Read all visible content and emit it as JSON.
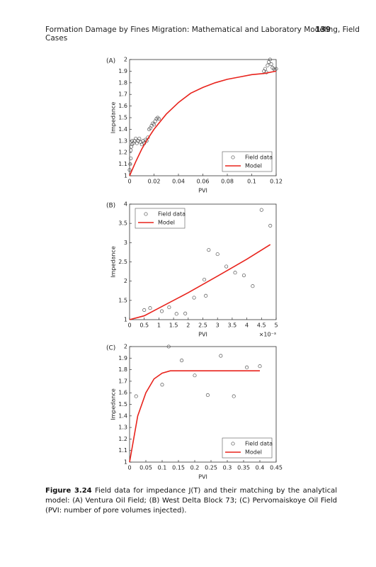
{
  "header": {
    "title": "Formation Damage by Fines Migration: Mathematical and Laboratory Modeling, Field Cases",
    "page": "139"
  },
  "caption": {
    "label": "Figure 3.24",
    "text": "Field data for impedance J(T) and their matching by the analytical model: (A) Ventura Oil Field; (B) West Delta Block 73; (C) Pervomaiskoye Oil Field (PVI: number of pore volumes injected)."
  },
  "chart_data": [
    {
      "type": "scatter",
      "panel": "(A)",
      "xlabel": "PVI",
      "ylabel": "Impedance",
      "xlim": [
        0,
        0.12
      ],
      "ylim": [
        1,
        2
      ],
      "xticks": [
        0,
        0.02,
        0.04,
        0.06,
        0.08,
        0.1,
        0.12
      ],
      "yticks": [
        1,
        1.1,
        1.2,
        1.3,
        1.4,
        1.5,
        1.6,
        1.7,
        1.8,
        1.9,
        2
      ],
      "legend": "lower right",
      "series": [
        {
          "name": "Field data",
          "color": "#555555",
          "mark": "circle",
          "x": [
            0,
            0.0005,
            0.001,
            0.001,
            0.0015,
            0.002,
            0.002,
            0.003,
            0.004,
            0.005,
            0.006,
            0.007,
            0.008,
            0.009,
            0.01,
            0.011,
            0.012,
            0.013,
            0.014,
            0.015,
            0.016,
            0.017,
            0.018,
            0.019,
            0.02,
            0.021,
            0.022,
            0.023,
            0.024,
            0.11,
            0.111,
            0.112,
            0.113,
            0.114,
            0.115,
            0.116,
            0.117,
            0.118,
            0.119,
            0.12
          ],
          "values": [
            1.05,
            1.1,
            1.15,
            1.22,
            1.25,
            1.27,
            1.3,
            1.28,
            1.3,
            1.32,
            1.28,
            1.3,
            1.32,
            1.29,
            1.27,
            1.3,
            1.28,
            1.31,
            1.3,
            1.33,
            1.4,
            1.41,
            1.43,
            1.45,
            1.44,
            1.47,
            1.49,
            1.5,
            1.49,
            1.9,
            1.92,
            1.89,
            1.95,
            1.98,
            2,
            1.96,
            1.93,
            1.92,
            1.91,
            1.92
          ]
        },
        {
          "name": "Model",
          "color": "#e8231c",
          "mark": "line",
          "x": [
            0,
            0.005,
            0.01,
            0.015,
            0.02,
            0.03,
            0.04,
            0.05,
            0.06,
            0.07,
            0.08,
            0.09,
            0.1,
            0.11,
            0.12
          ],
          "values": [
            1,
            1.12,
            1.23,
            1.32,
            1.4,
            1.53,
            1.63,
            1.71,
            1.76,
            1.8,
            1.83,
            1.85,
            1.87,
            1.88,
            1.9
          ]
        }
      ]
    },
    {
      "type": "scatter",
      "panel": "(B)",
      "xlabel": "PVI",
      "ylabel": "Impedance",
      "x_multiplier": "×10⁻³",
      "xlim": [
        0,
        5
      ],
      "ylim": [
        1,
        4
      ],
      "xticks": [
        0,
        0.5,
        1,
        1.5,
        2,
        2.5,
        3,
        3.5,
        4,
        4.5,
        5
      ],
      "yticks": [
        1,
        1.5,
        2,
        2.5,
        3,
        3.5,
        4
      ],
      "legend": "upper left",
      "series": [
        {
          "name": "Field data",
          "color": "#555555",
          "mark": "circle",
          "x": [
            0.5,
            0.7,
            1.1,
            1.35,
            1.6,
            1.9,
            2.2,
            2.55,
            2.6,
            2.7,
            3,
            3.3,
            3.6,
            3.9,
            4.2,
            4.5,
            4.8
          ],
          "values": [
            1.25,
            1.3,
            1.22,
            1.32,
            1.15,
            1.16,
            1.57,
            2.04,
            1.62,
            2.81,
            2.7,
            2.38,
            2.22,
            2.15,
            1.87,
            3.85,
            3.44
          ]
        },
        {
          "name": "Model",
          "color": "#e8231c",
          "mark": "line",
          "x": [
            0,
            0.5,
            1,
            2,
            3,
            4,
            4.8
          ],
          "values": [
            1,
            1.1,
            1.3,
            1.7,
            2.13,
            2.57,
            2.95
          ]
        }
      ]
    },
    {
      "type": "scatter",
      "panel": "(C)",
      "xlabel": "PVI",
      "ylabel": "Impedance",
      "xlim": [
        0,
        0.45
      ],
      "ylim": [
        1,
        2
      ],
      "xticks": [
        0,
        0.05,
        0.1,
        0.15,
        0.2,
        0.25,
        0.3,
        0.35,
        0.4,
        0.45
      ],
      "yticks": [
        1,
        1.1,
        1.2,
        1.3,
        1.4,
        1.5,
        1.6,
        1.7,
        1.8,
        1.9,
        2
      ],
      "legend": "lower right",
      "series": [
        {
          "name": "Field data",
          "color": "#555555",
          "mark": "circle",
          "x": [
            0.02,
            0.12,
            0.1,
            0.16,
            0.2,
            0.24,
            0.28,
            0.32,
            0.36,
            0.4
          ],
          "values": [
            1.57,
            2,
            1.67,
            1.88,
            1.75,
            1.58,
            1.92,
            1.57,
            1.82,
            1.83
          ]
        },
        {
          "name": "Model",
          "color": "#e8231c",
          "mark": "line",
          "x": [
            0,
            0.025,
            0.05,
            0.075,
            0.1,
            0.125,
            0.4
          ],
          "values": [
            1,
            1.4,
            1.6,
            1.72,
            1.77,
            1.79,
            1.79
          ]
        }
      ]
    }
  ]
}
